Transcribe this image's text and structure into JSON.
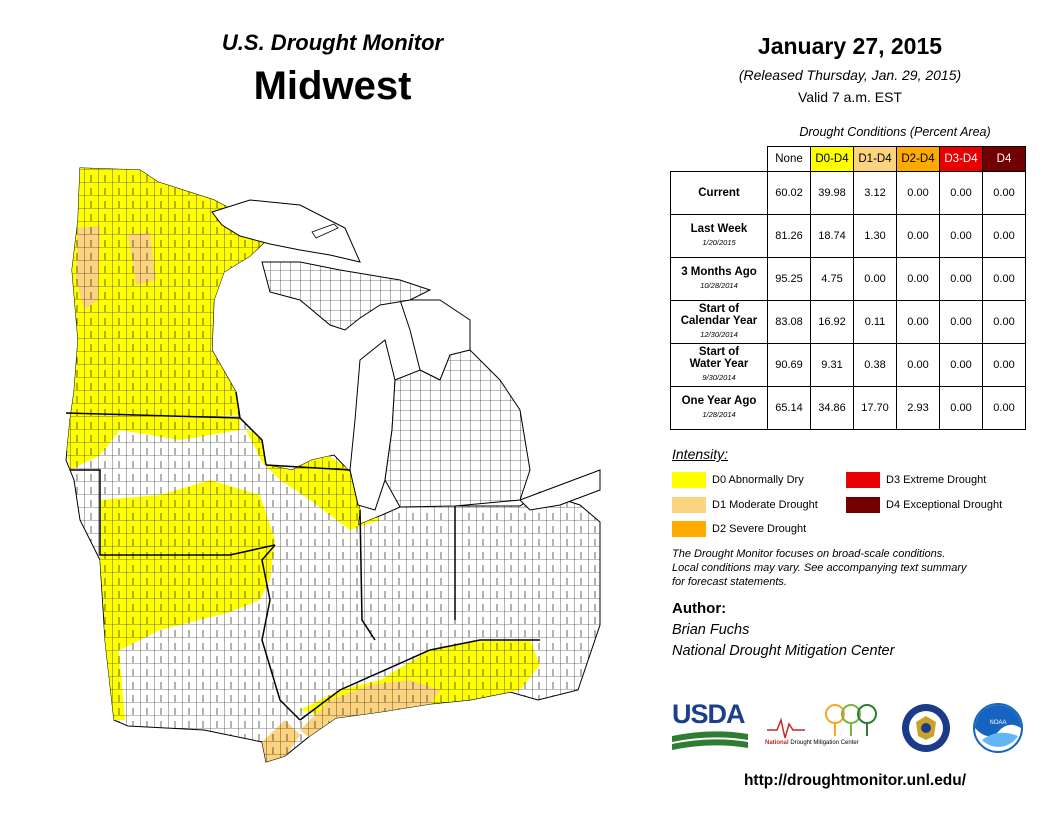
{
  "header": {
    "monitor_title": "U.S. Drought Monitor",
    "region": "Midwest",
    "date": "January 27, 2015",
    "released": "(Released Thursday, Jan. 29, 2015)",
    "valid": "Valid  7 a.m. EST"
  },
  "table": {
    "caption": "Drought Conditions (Percent Area)",
    "columns": [
      "None",
      "D0-D4",
      "D1-D4",
      "D2-D4",
      "D3-D4",
      "D4"
    ],
    "rows": [
      {
        "label": "Current",
        "sub": "",
        "values": [
          "60.02",
          "39.98",
          "3.12",
          "0.00",
          "0.00",
          "0.00"
        ]
      },
      {
        "label": "Last Week",
        "sub": "1/20/2015",
        "values": [
          "81.26",
          "18.74",
          "1.30",
          "0.00",
          "0.00",
          "0.00"
        ]
      },
      {
        "label": "3 Months Ago",
        "sub": "10/28/2014",
        "values": [
          "95.25",
          "4.75",
          "0.00",
          "0.00",
          "0.00",
          "0.00"
        ]
      },
      {
        "label": "Start of\nCalendar Year",
        "sub": "12/30/2014",
        "values": [
          "83.08",
          "16.92",
          "0.11",
          "0.00",
          "0.00",
          "0.00"
        ]
      },
      {
        "label": "Start of\nWater Year",
        "sub": "9/30/2014",
        "values": [
          "90.69",
          "9.31",
          "0.38",
          "0.00",
          "0.00",
          "0.00"
        ]
      },
      {
        "label": "One Year Ago",
        "sub": "1/28/2014",
        "values": [
          "65.14",
          "34.86",
          "17.70",
          "2.93",
          "0.00",
          "0.00"
        ]
      }
    ]
  },
  "legend": {
    "title": "Intensity:",
    "items": [
      {
        "label": "D0 Abnormally Dry",
        "color": "#ffff00"
      },
      {
        "label": "D1 Moderate Drought",
        "color": "#fcd37f"
      },
      {
        "label": "D2 Severe Drought",
        "color": "#ffaa00"
      },
      {
        "label": "D3 Extreme Drought",
        "color": "#e60000"
      },
      {
        "label": "D4 Exceptional Drought",
        "color": "#730000"
      }
    ]
  },
  "note": {
    "line1": "The Drought Monitor focuses on broad-scale conditions.",
    "line2": "Local conditions may vary. See accompanying text summary",
    "line3": "for forecast statements."
  },
  "author": {
    "heading": "Author:",
    "name": "Brian Fuchs",
    "org": "National Drought Mitigation Center"
  },
  "logos": {
    "usda": "USDA",
    "ndmc_national": "National",
    "ndmc_rest": "Drought Mitigation Center",
    "noaa": "NOAA"
  },
  "map_colors": {
    "none": "#ffffff",
    "d0": "#ffff00",
    "d1": "#fcd37f",
    "lake": "#ffffff",
    "border": "#000000"
  },
  "url": "http://droughtmonitor.unl.edu/"
}
